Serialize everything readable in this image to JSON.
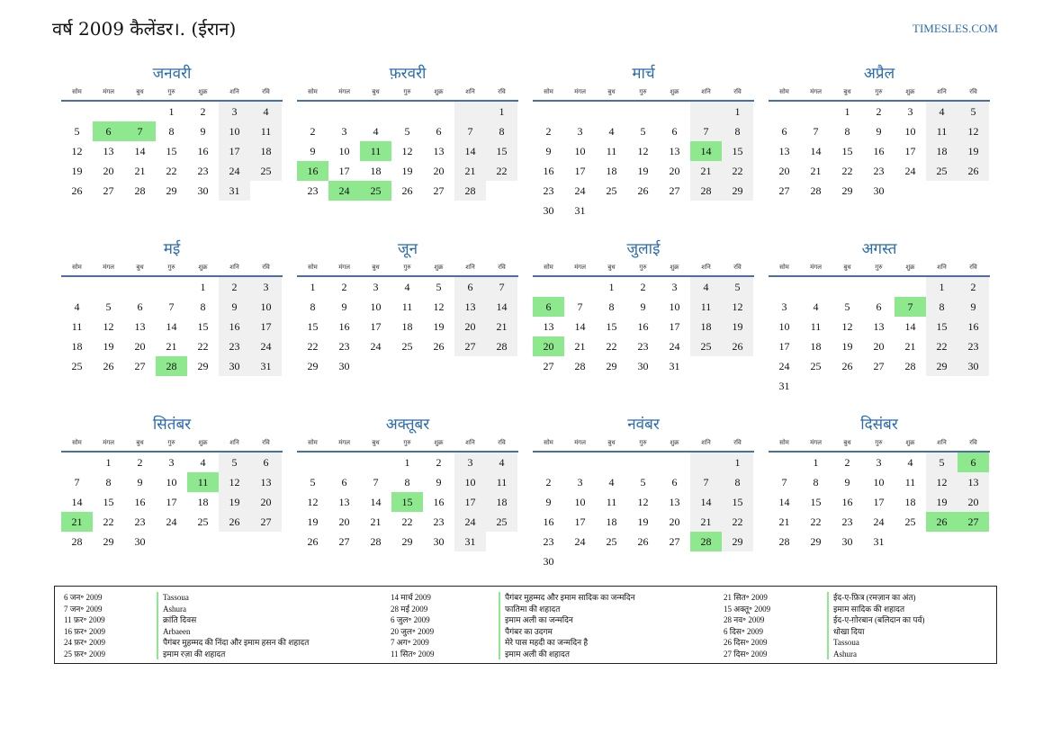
{
  "header": {
    "title": "वर्ष 2009 कैलेंडर।. (ईरान)",
    "site": "TIMESLES.COM"
  },
  "weekdays": [
    "सोम",
    "मंगल",
    "बुध",
    "गुरु",
    "शुक्र",
    "शनि",
    "रवि"
  ],
  "months": [
    {
      "name": "जनवरी",
      "offset": 3,
      "days": 31,
      "holidays": [
        6,
        7
      ]
    },
    {
      "name": "फ़रवरी",
      "offset": 6,
      "days": 28,
      "holidays": [
        11,
        16,
        24,
        25
      ]
    },
    {
      "name": "मार्च",
      "offset": 6,
      "days": 31,
      "holidays": [
        14
      ]
    },
    {
      "name": "अप्रैल",
      "offset": 2,
      "days": 30,
      "holidays": []
    },
    {
      "name": "मई",
      "offset": 4,
      "days": 31,
      "holidays": [
        28
      ]
    },
    {
      "name": "जून",
      "offset": 0,
      "days": 30,
      "holidays": []
    },
    {
      "name": "जुलाई",
      "offset": 2,
      "days": 31,
      "holidays": [
        6,
        20
      ]
    },
    {
      "name": "अगस्त",
      "offset": 5,
      "days": 31,
      "holidays": [
        7
      ]
    },
    {
      "name": "सितंबर",
      "offset": 1,
      "days": 30,
      "holidays": [
        11,
        21
      ]
    },
    {
      "name": "अक्तूबर",
      "offset": 3,
      "days": 31,
      "holidays": [
        15
      ]
    },
    {
      "name": "नवंबर",
      "offset": 6,
      "days": 30,
      "holidays": [
        28
      ]
    },
    {
      "name": "दिसंबर",
      "offset": 1,
      "days": 31,
      "holidays": [
        6,
        26,
        27
      ]
    }
  ],
  "legend": [
    [
      {
        "date": "6 जन॰ 2009",
        "name": "Tassoua"
      },
      {
        "date": "7 जन॰ 2009",
        "name": "Ashura"
      },
      {
        "date": "11 फ़र॰ 2009",
        "name": "क्रांति दिवस"
      },
      {
        "date": "16 फ़र॰ 2009",
        "name": "Arbaeen"
      },
      {
        "date": "24 फ़र॰ 2009",
        "name": "पैगंबर मुहम्मद की निंदा और इमाम हसन की शहादत"
      },
      {
        "date": "25 फ़र॰ 2009",
        "name": "इमाम रज़ा की शहादत"
      }
    ],
    [
      {
        "date": "14 मार्च 2009",
        "name": "पैगंबर मुहम्मद और इमाम सादिक का जन्मदिन"
      },
      {
        "date": "28 मई 2009",
        "name": "फातिमा की शहादत"
      },
      {
        "date": "6 जुल॰ 2009",
        "name": "इमाम अली का जन्मदिन"
      },
      {
        "date": "20 जुल॰ 2009",
        "name": "पैगंबर का उदगम"
      },
      {
        "date": "7 अग॰ 2009",
        "name": "मेरे पास महदी का जन्मदिन है"
      },
      {
        "date": "11 सित॰ 2009",
        "name": "इमाम अली की शहादत"
      }
    ],
    [
      {
        "date": "21 सित॰ 2009",
        "name": "ईद-ए-फ़ित्र (रमज़ान का अंत)"
      },
      {
        "date": "15 अक्तू॰ 2009",
        "name": "इमाम सादिक की शहादत"
      },
      {
        "date": "28 नव॰ 2009",
        "name": "ईद-ए-ग़ोरबान (बलिदान का पर्व)"
      },
      {
        "date": "6 दिस॰ 2009",
        "name": "धोखा दिया"
      },
      {
        "date": "26 दिस॰ 2009",
        "name": "Tassoua"
      },
      {
        "date": "27 दिस॰ 2009",
        "name": "Ashura"
      }
    ]
  ]
}
